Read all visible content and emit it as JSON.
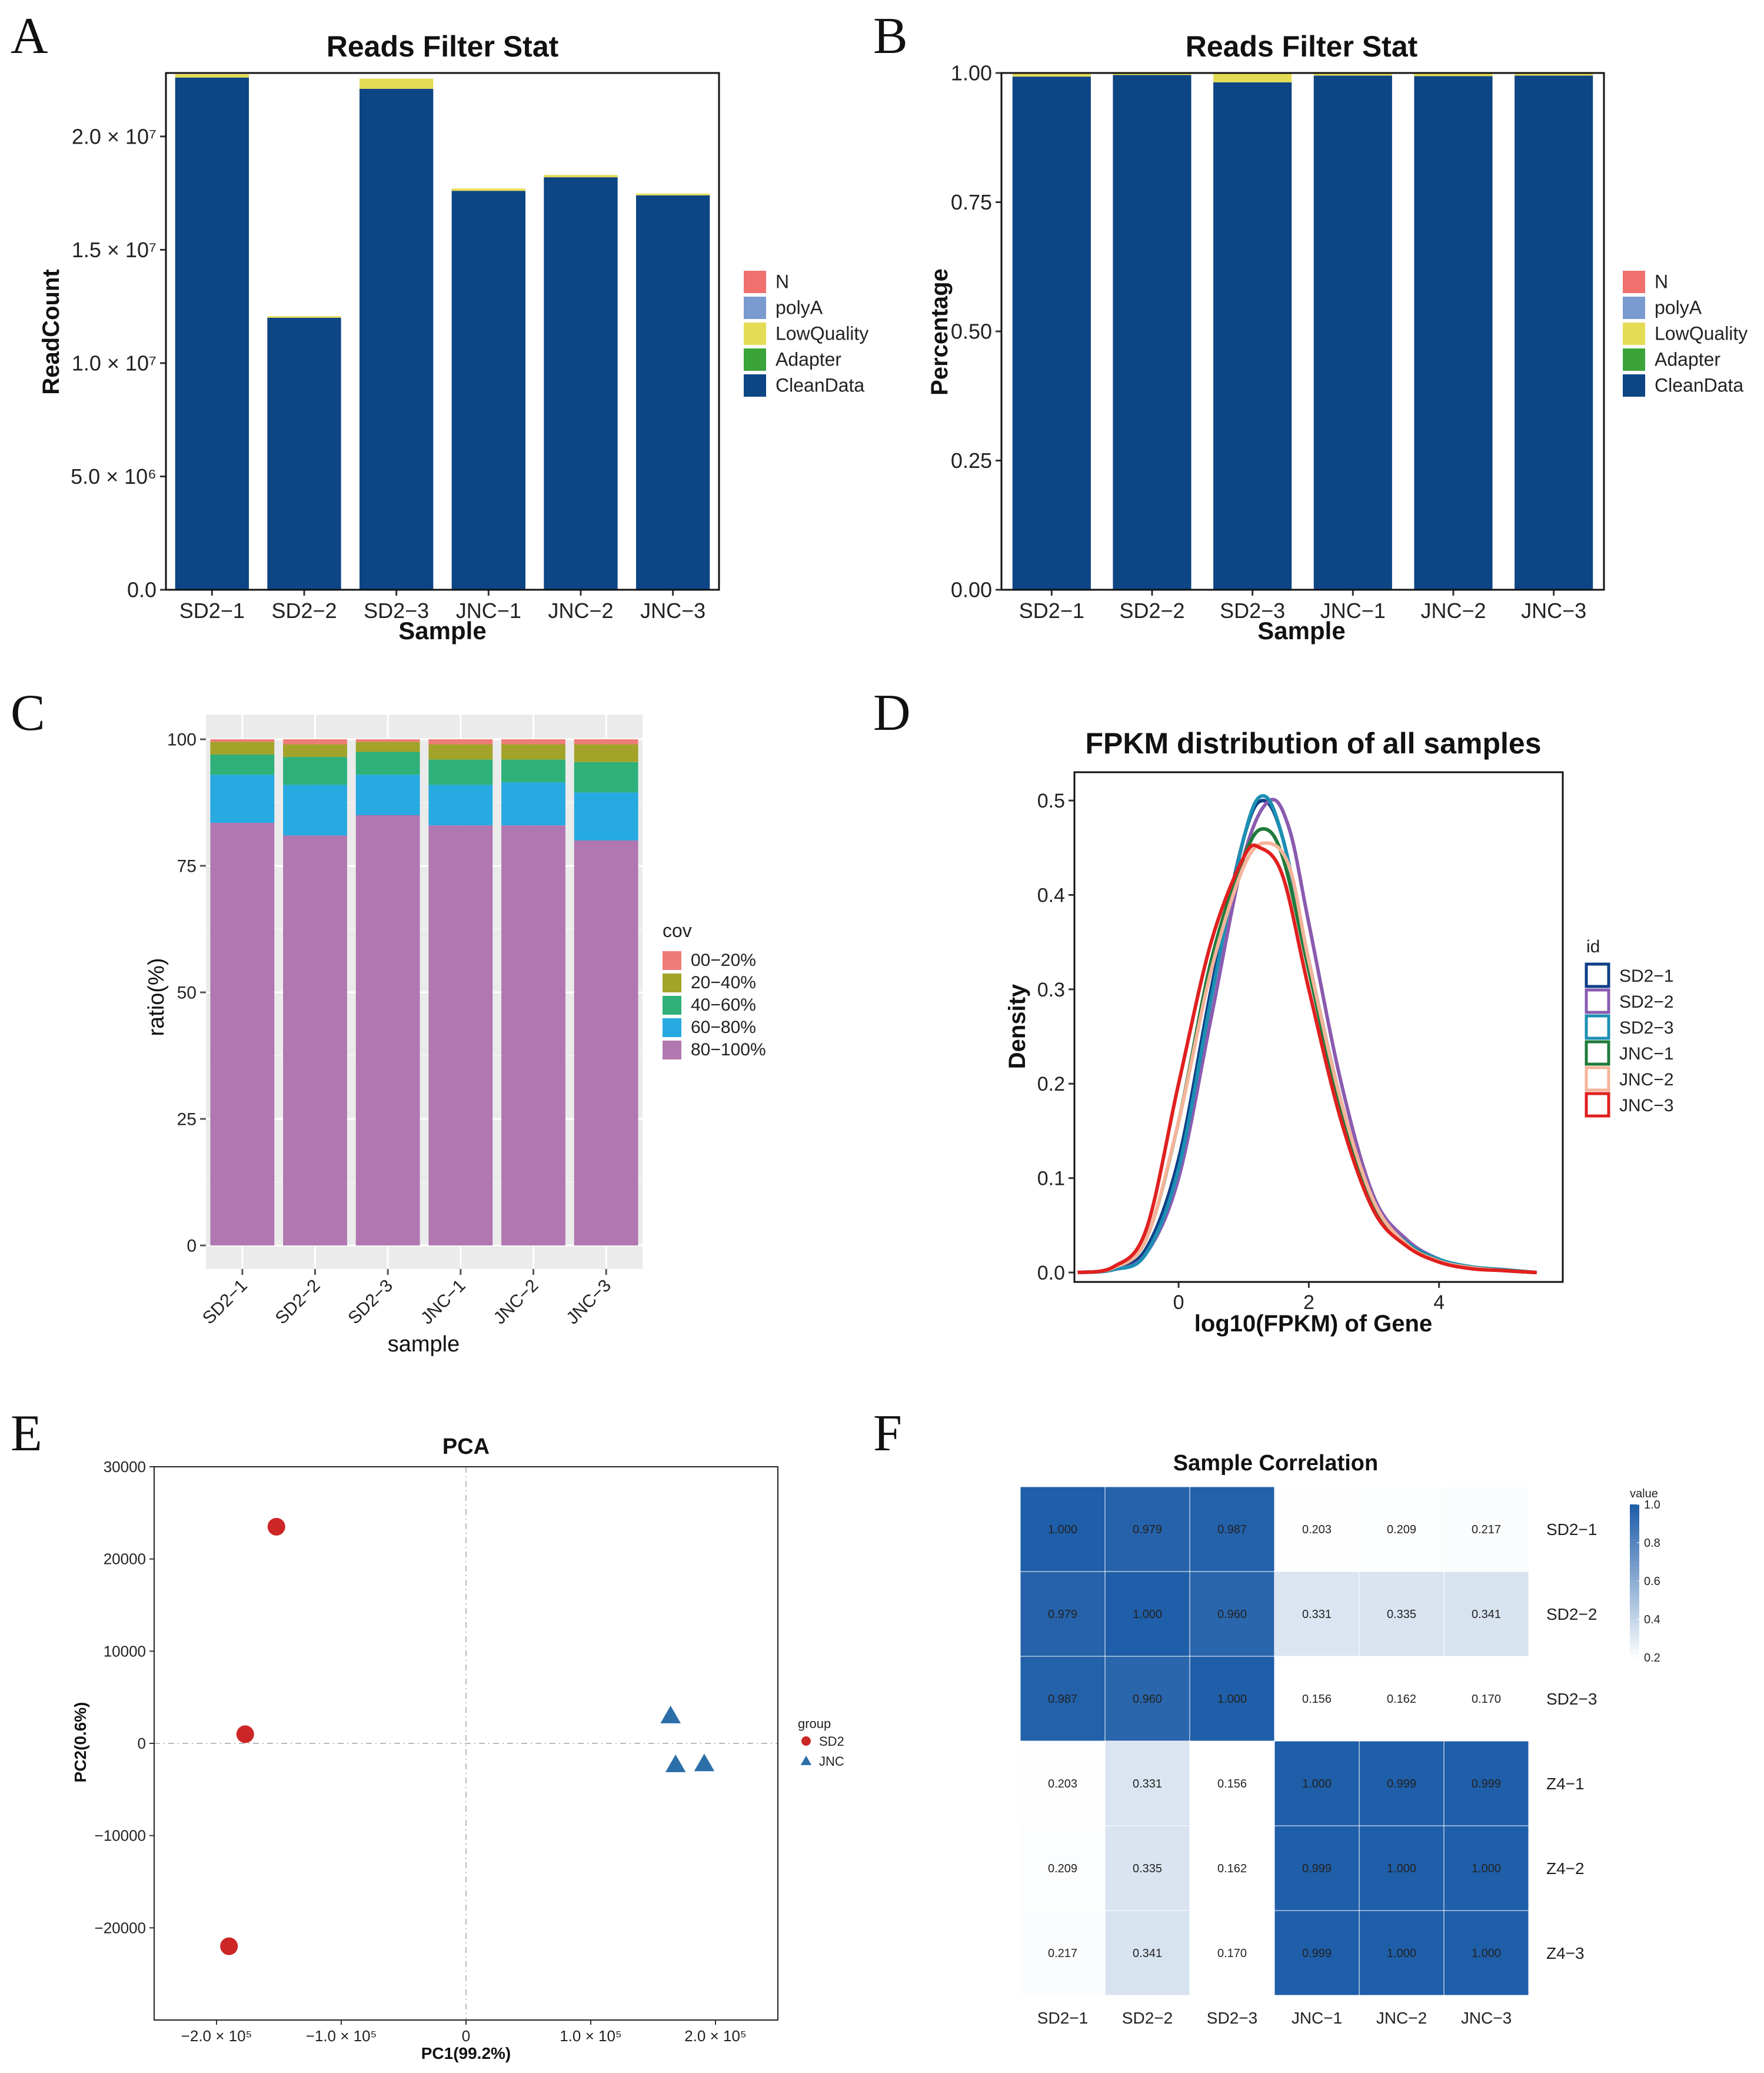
{
  "chart_data": [
    {
      "letter": "A",
      "type": "bar",
      "stacked": true,
      "title": "Reads Filter Stat",
      "xlabel": "Sample",
      "ylabel": "ReadCount",
      "ylim": [
        0,
        22800000
      ],
      "ytick_values": [
        0,
        5000000,
        10000000,
        15000000,
        20000000
      ],
      "yticks": [
        "0.0",
        "5.0 × 10⁶",
        "1.0 × 10⁷",
        "1.5 × 10⁷",
        "2.0 × 10⁷"
      ],
      "categories": [
        "SD2−1",
        "SD2−2",
        "SD2−3",
        "JNC−1",
        "JNC−2",
        "JNC−3"
      ],
      "series": [
        {
          "name": "CleanData",
          "color": "#0d4585",
          "values": [
            22600000,
            12000000,
            22100000,
            17600000,
            18200000,
            17400000
          ]
        },
        {
          "name": "Adapter",
          "color": "#3aa33a",
          "values": [
            0,
            0,
            0,
            0,
            0,
            0
          ]
        },
        {
          "name": "LowQuality",
          "color": "#e5dc55",
          "values": [
            150000,
            70000,
            450000,
            100000,
            100000,
            80000
          ]
        },
        {
          "name": "polyA",
          "color": "#7a9bd0",
          "values": [
            0,
            0,
            0,
            0,
            0,
            0
          ]
        },
        {
          "name": "N",
          "color": "#f07070",
          "values": [
            0,
            0,
            0,
            0,
            0,
            0
          ]
        }
      ],
      "legend": [
        "N",
        "polyA",
        "LowQuality",
        "Adapter",
        "CleanData"
      ]
    },
    {
      "letter": "B",
      "type": "bar",
      "stacked": true,
      "title": "Reads Filter Stat",
      "xlabel": "Sample",
      "ylabel": "Percentage",
      "ylim": [
        0,
        1.0
      ],
      "ytick_values": [
        0,
        0.25,
        0.5,
        0.75,
        1.0
      ],
      "yticks": [
        "0.00",
        "0.25",
        "0.50",
        "0.75",
        "1.00"
      ],
      "categories": [
        "SD2−1",
        "SD2−2",
        "SD2−3",
        "JNC−1",
        "JNC−2",
        "JNC−3"
      ],
      "series": [
        {
          "name": "CleanData",
          "color": "#0d4585",
          "values": [
            0.993,
            0.996,
            0.982,
            0.995,
            0.994,
            0.995
          ]
        },
        {
          "name": "Adapter",
          "color": "#3aa33a",
          "values": [
            0,
            0,
            0,
            0,
            0,
            0
          ]
        },
        {
          "name": "LowQuality",
          "color": "#e5dc55",
          "values": [
            0.007,
            0.004,
            0.018,
            0.005,
            0.006,
            0.005
          ]
        },
        {
          "name": "polyA",
          "color": "#7a9bd0",
          "values": [
            0,
            0,
            0,
            0,
            0,
            0
          ]
        },
        {
          "name": "N",
          "color": "#f07070",
          "values": [
            0,
            0,
            0,
            0,
            0,
            0
          ]
        }
      ],
      "legend": [
        "N",
        "polyA",
        "LowQuality",
        "Adapter",
        "CleanData"
      ]
    },
    {
      "letter": "C",
      "type": "bar",
      "stacked": true,
      "title": "",
      "xlabel": "sample",
      "ylabel": "ratio(%)",
      "ylim": [
        0,
        100
      ],
      "ytick_values": [
        0,
        25,
        50,
        75,
        100
      ],
      "yticks": [
        "0",
        "25",
        "50",
        "75",
        "100"
      ],
      "categories": [
        "SD2−1",
        "SD2−2",
        "SD2−3",
        "JNC−1",
        "JNC−2",
        "JNC−3"
      ],
      "series": [
        {
          "name": "80−100%",
          "color": "#b077b1",
          "values": [
            83.5,
            81,
            85,
            83,
            83,
            80
          ]
        },
        {
          "name": "60−80%",
          "color": "#27a9e1",
          "values": [
            9.5,
            10,
            8,
            8,
            8.5,
            9.5
          ]
        },
        {
          "name": "40−60%",
          "color": "#2fb079",
          "values": [
            4,
            5.5,
            4.5,
            5,
            4.5,
            6
          ]
        },
        {
          "name": "20−40%",
          "color": "#a3a229",
          "values": [
            2.5,
            2.5,
            2,
            3,
            3,
            3.5
          ]
        },
        {
          "name": "00−20%",
          "color": "#ef7b78",
          "values": [
            0.5,
            1,
            0.5,
            1,
            1,
            1
          ]
        }
      ],
      "legend_title": "cov",
      "legend": [
        "00−20%",
        "20−40%",
        "40−60%",
        "60−80%",
        "80−100%"
      ]
    },
    {
      "letter": "D",
      "type": "line",
      "title": "FPKM distribution of all samples",
      "xlabel": "log10(FPKM) of Gene",
      "ylabel": "Density",
      "xlim": [
        -1.6,
        5.9
      ],
      "ylim": [
        -0.01,
        0.53
      ],
      "xtick_values": [
        0,
        2,
        4
      ],
      "xticks": [
        "0",
        "2",
        "4"
      ],
      "ytick_values": [
        0,
        0.1,
        0.2,
        0.3,
        0.4,
        0.5
      ],
      "yticks": [
        "0.0",
        "0.1",
        "0.2",
        "0.3",
        "0.4",
        "0.5"
      ],
      "legend_title": "id",
      "series": [
        {
          "name": "SD2−1",
          "color": "#0d3f86",
          "x": [
            -1.55,
            -1.0,
            -0.5,
            0.0,
            0.5,
            1.0,
            1.3,
            1.6,
            2.0,
            2.5,
            3.0,
            3.5,
            4.0,
            4.5,
            5.0,
            5.5
          ],
          "y": [
            0.0,
            0.004,
            0.025,
            0.12,
            0.3,
            0.46,
            0.5,
            0.46,
            0.33,
            0.18,
            0.07,
            0.03,
            0.012,
            0.005,
            0.002,
            0.0
          ]
        },
        {
          "name": "SD2−2",
          "color": "#8a5bb0",
          "x": [
            -1.55,
            -1.0,
            -0.5,
            0.0,
            0.5,
            1.0,
            1.4,
            1.7,
            2.0,
            2.5,
            3.0,
            3.5,
            4.0,
            4.5,
            5.0,
            5.5
          ],
          "y": [
            0.0,
            0.003,
            0.02,
            0.1,
            0.27,
            0.44,
            0.5,
            0.47,
            0.37,
            0.2,
            0.08,
            0.035,
            0.014,
            0.005,
            0.002,
            0.0
          ]
        },
        {
          "name": "SD2−3",
          "color": "#1c8fb3",
          "x": [
            -1.55,
            -1.0,
            -0.5,
            0.0,
            0.5,
            1.0,
            1.3,
            1.6,
            2.0,
            2.5,
            3.0,
            3.5,
            4.0,
            4.5,
            5.0,
            5.5
          ],
          "y": [
            0.0,
            0.003,
            0.02,
            0.11,
            0.29,
            0.46,
            0.505,
            0.46,
            0.33,
            0.18,
            0.07,
            0.032,
            0.014,
            0.006,
            0.003,
            0.0
          ]
        },
        {
          "name": "JNC−1",
          "color": "#1f7a3a",
          "x": [
            -1.55,
            -1.0,
            -0.5,
            0.0,
            0.5,
            1.0,
            1.3,
            1.6,
            2.0,
            2.5,
            3.0,
            3.5,
            4.0,
            4.5,
            5.0,
            5.5
          ],
          "y": [
            0.0,
            0.005,
            0.035,
            0.16,
            0.33,
            0.44,
            0.47,
            0.44,
            0.32,
            0.17,
            0.07,
            0.03,
            0.012,
            0.005,
            0.002,
            0.0
          ]
        },
        {
          "name": "JNC−2",
          "color": "#f5b49a",
          "x": [
            -1.55,
            -1.0,
            -0.5,
            0.0,
            0.5,
            1.0,
            1.35,
            1.7,
            2.0,
            2.5,
            3.0,
            3.5,
            4.0,
            4.5,
            5.0,
            5.5
          ],
          "y": [
            0.0,
            0.005,
            0.035,
            0.16,
            0.32,
            0.43,
            0.455,
            0.43,
            0.33,
            0.18,
            0.075,
            0.03,
            0.012,
            0.005,
            0.002,
            0.0
          ]
        },
        {
          "name": "JNC−3",
          "color": "#e0201f",
          "x": [
            -1.55,
            -1.0,
            -0.5,
            0.0,
            0.5,
            1.0,
            1.25,
            1.6,
            2.0,
            2.5,
            3.0,
            3.5,
            4.0,
            4.5,
            5.0,
            5.5
          ],
          "y": [
            0.0,
            0.006,
            0.045,
            0.2,
            0.35,
            0.44,
            0.45,
            0.42,
            0.3,
            0.16,
            0.065,
            0.028,
            0.011,
            0.004,
            0.002,
            0.0
          ]
        }
      ]
    },
    {
      "letter": "E",
      "type": "scatter",
      "title": "PCA",
      "xlabel": "PC1(99.2%)",
      "ylabel": "PC2(0.6%)",
      "xlim": [
        -250000,
        250000
      ],
      "ylim": [
        -30000,
        30000
      ],
      "xtick_values": [
        -200000,
        -100000,
        0,
        100000,
        200000
      ],
      "xticks": [
        "−2.0 × 10⁵",
        "−1.0 × 10⁵",
        "0",
        "1.0 × 10⁵",
        "2.0 × 10⁵"
      ],
      "ytick_values": [
        -20000,
        -10000,
        0,
        10000,
        20000,
        30000
      ],
      "yticks": [
        "−20000",
        "−10000",
        "0",
        "10000",
        "20000",
        "30000"
      ],
      "legend_title": "group",
      "series": [
        {
          "name": "SD2",
          "color": "#cd2626",
          "shape": "circle",
          "x": [
            -152000,
            -177000,
            -190000
          ],
          "y": [
            23500,
            1000,
            -22000
          ]
        },
        {
          "name": "JNC",
          "color": "#2c6ea8",
          "shape": "triangle",
          "x": [
            164000,
            168000,
            191000
          ],
          "y": [
            3000,
            -2300,
            -2200
          ]
        }
      ]
    },
    {
      "letter": "F",
      "type": "heatmap",
      "title": "Sample Correlation",
      "columns": [
        "SD2−1",
        "SD2−2",
        "SD2−3",
        "JNC−1",
        "JNC−2",
        "JNC−3"
      ],
      "rows": [
        "SD2−1",
        "SD2−2",
        "SD2−3",
        "Z4−1",
        "Z4−2",
        "Z4−3"
      ],
      "values": [
        [
          1.0,
          0.979,
          0.987,
          0.203,
          0.209,
          0.217
        ],
        [
          0.979,
          1.0,
          0.96,
          0.331,
          0.335,
          0.341
        ],
        [
          0.987,
          0.96,
          1.0,
          0.156,
          0.162,
          0.17
        ],
        [
          0.203,
          0.331,
          0.156,
          1.0,
          0.999,
          0.999
        ],
        [
          0.209,
          0.335,
          0.162,
          0.999,
          1.0,
          1.0
        ],
        [
          0.217,
          0.341,
          0.17,
          0.999,
          1.0,
          1.0
        ]
      ],
      "labels": [
        [
          "1.000",
          "0.979",
          "0.987",
          "0.203",
          "0.209",
          "0.217"
        ],
        [
          "0.979",
          "1.000",
          "0.960",
          "0.331",
          "0.335",
          "0.341"
        ],
        [
          "0.987",
          "0.960",
          "1.000",
          "0.156",
          "0.162",
          "0.170"
        ],
        [
          "0.203",
          "0.331",
          "0.156",
          "1.000",
          "0.999",
          "0.999"
        ],
        [
          "0.209",
          "0.335",
          "0.162",
          "0.999",
          "1.000",
          "1.000"
        ],
        [
          "0.217",
          "0.341",
          "0.170",
          "0.999",
          "1.000",
          "1.000"
        ]
      ],
      "legend_title": "value",
      "scale_range": [
        0.2,
        1.0
      ],
      "scale_ticks": [
        "1.0",
        "0.8",
        "0.6",
        "0.4",
        "0.2"
      ],
      "scale_tick_values": [
        1.0,
        0.8,
        0.6,
        0.4,
        0.2
      ],
      "color_low": "#ffffff",
      "color_high": "#1f5ea8"
    }
  ]
}
